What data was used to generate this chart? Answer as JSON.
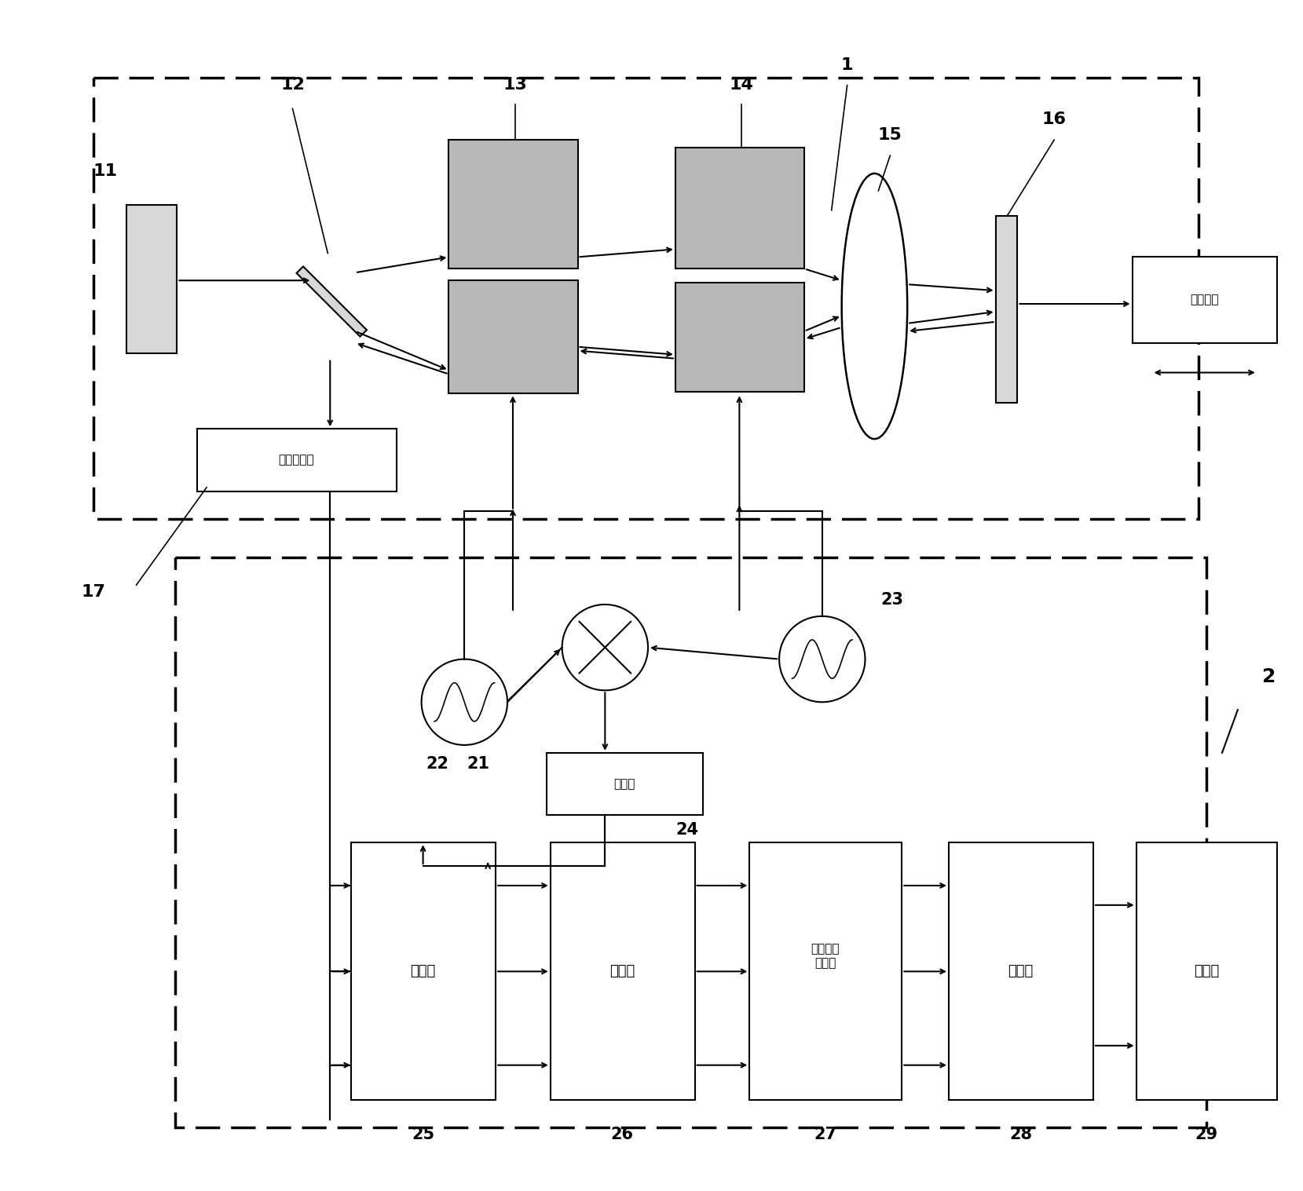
{
  "fig_width": 16.59,
  "fig_height": 15.17,
  "bg_color": "#ffffff",
  "box_detect": "光电探测器",
  "box_beice": "被测物体",
  "box_filter": "滤波器",
  "box_amp": "放大器",
  "box_match_line1": "单端信号",
  "box_match_line2": "配适器",
  "box_phase": "相位计",
  "box_comp": "计算机",
  "box_freq_line1": "倍频器",
  "label_11": "11",
  "label_12": "12",
  "label_13": "13",
  "label_14": "14",
  "label_1": "1",
  "label_15": "15",
  "label_16": "16",
  "label_17": "17",
  "label_21": "21",
  "label_22": "22",
  "label_23": "23",
  "label_24": "24",
  "label_25": "25",
  "label_26": "26",
  "label_27": "27",
  "label_28": "28",
  "label_29": "29",
  "label_2": "2",
  "gray_color": "#b8b8b8",
  "light_gray": "#d8d8d8"
}
